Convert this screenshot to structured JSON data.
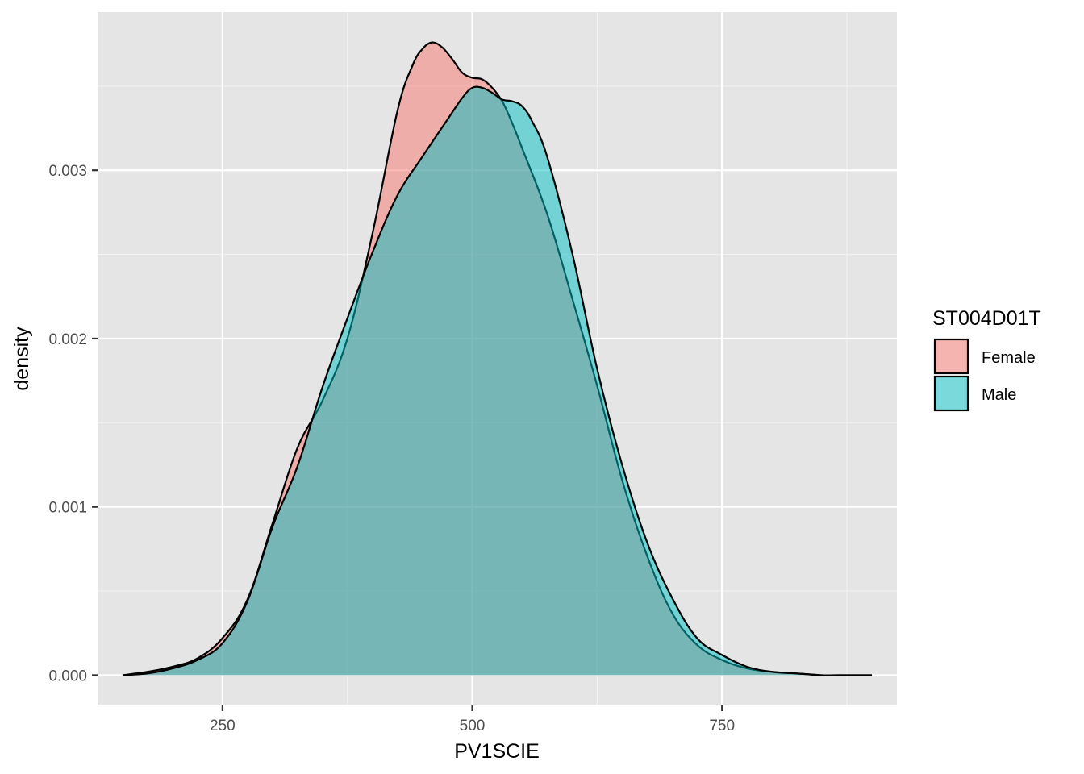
{
  "chart_data": {
    "type": "area",
    "title": "",
    "xlabel": "PV1SCIE",
    "ylabel": "density",
    "xlim": [
      125,
      925
    ],
    "ylim": [
      -0.00018,
      0.00394
    ],
    "x_ticks": [
      250,
      500,
      750
    ],
    "x_tick_labels": [
      "250",
      "500",
      "750"
    ],
    "y_ticks": [
      0.0,
      0.001,
      0.002,
      0.003
    ],
    "y_tick_labels": [
      "0.000",
      "0.001",
      "0.002",
      "0.003"
    ],
    "grid": true,
    "legend": {
      "title": "ST004D01T",
      "position": "right"
    },
    "series": [
      {
        "name": "Female",
        "color": "#F8766D",
        "x": [
          150,
          175,
          200,
          225,
          250,
          275,
          300,
          325,
          350,
          375,
          400,
          425,
          440,
          450,
          460,
          470,
          480,
          490,
          500,
          510,
          520,
          530,
          540,
          550,
          575,
          600,
          625,
          650,
          675,
          700,
          725,
          750,
          775,
          800,
          825,
          850,
          875,
          900
        ],
        "y": [
          0.0,
          2e-05,
          5e-05,
          0.0001,
          0.00022,
          0.00045,
          0.0009,
          0.00135,
          0.00163,
          0.002,
          0.00262,
          0.00335,
          0.00362,
          0.00372,
          0.00376,
          0.00373,
          0.00366,
          0.00358,
          0.00355,
          0.00354,
          0.00349,
          0.00341,
          0.00328,
          0.00313,
          0.00274,
          0.00224,
          0.00172,
          0.00116,
          0.00071,
          0.00037,
          0.00018,
          9e-05,
          4e-05,
          2e-05,
          1e-05,
          0.0,
          0.0,
          0.0
        ]
      },
      {
        "name": "Male",
        "color": "#00BFC4",
        "x": [
          150,
          175,
          200,
          225,
          250,
          275,
          300,
          325,
          350,
          375,
          400,
          425,
          450,
          475,
          490,
          500,
          510,
          520,
          530,
          540,
          550,
          560,
          575,
          600,
          625,
          650,
          675,
          700,
          725,
          750,
          775,
          800,
          825,
          850,
          875,
          900
        ],
        "y": [
          0.0,
          1e-05,
          4e-05,
          9e-05,
          0.00019,
          0.00044,
          0.00088,
          0.00124,
          0.00171,
          0.00212,
          0.00251,
          0.00285,
          0.00308,
          0.0033,
          0.00343,
          0.00349,
          0.00349,
          0.00346,
          0.00342,
          0.00341,
          0.00338,
          0.00329,
          0.00308,
          0.00251,
          0.00182,
          0.00125,
          0.00079,
          0.00046,
          0.00022,
          0.00012,
          5e-05,
          2e-05,
          1e-05,
          0.0,
          0.0,
          0.0
        ]
      }
    ]
  }
}
